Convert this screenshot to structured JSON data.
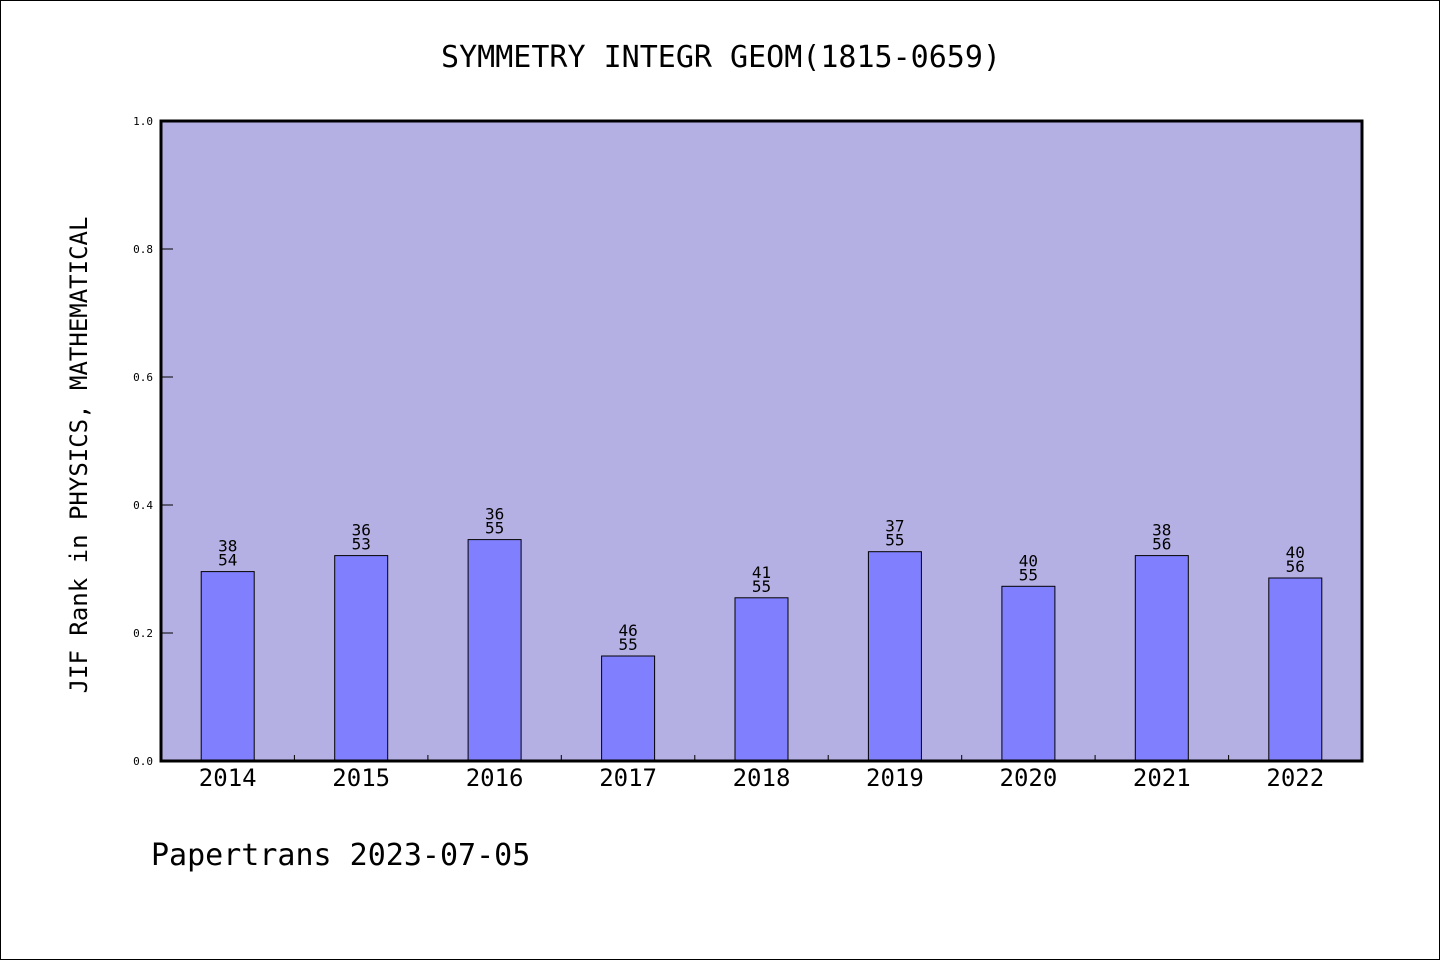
{
  "chart_data": {
    "type": "bar",
    "title": "SYMMETRY INTEGR GEOM(1815-0659)",
    "xlabel": "",
    "ylabel": "JIF Rank in PHYSICS, MATHEMATICAL",
    "ylim": [
      0.0,
      1.0
    ],
    "yticks": [
      "0.0",
      "0.2",
      "0.4",
      "0.6",
      "0.8",
      "1.0"
    ],
    "categories": [
      "2014",
      "2015",
      "2016",
      "2017",
      "2018",
      "2019",
      "2020",
      "2021",
      "2022"
    ],
    "values": [
      0.296,
      0.321,
      0.346,
      0.164,
      0.255,
      0.327,
      0.273,
      0.321,
      0.286
    ],
    "labels": [
      [
        "38",
        "54"
      ],
      [
        "36",
        "53"
      ],
      [
        "36",
        "55"
      ],
      [
        "46",
        "55"
      ],
      [
        "41",
        "55"
      ],
      [
        "37",
        "55"
      ],
      [
        "40",
        "55"
      ],
      [
        "38",
        "56"
      ],
      [
        "40",
        "56"
      ]
    ],
    "grid": false,
    "legend": "none",
    "colors": {
      "plot_background": "#b5b0e3",
      "bar_fill": "#8080ff",
      "bar_stroke": "#000000"
    }
  },
  "footer": {
    "text": "Papertrans 2023-07-05"
  }
}
